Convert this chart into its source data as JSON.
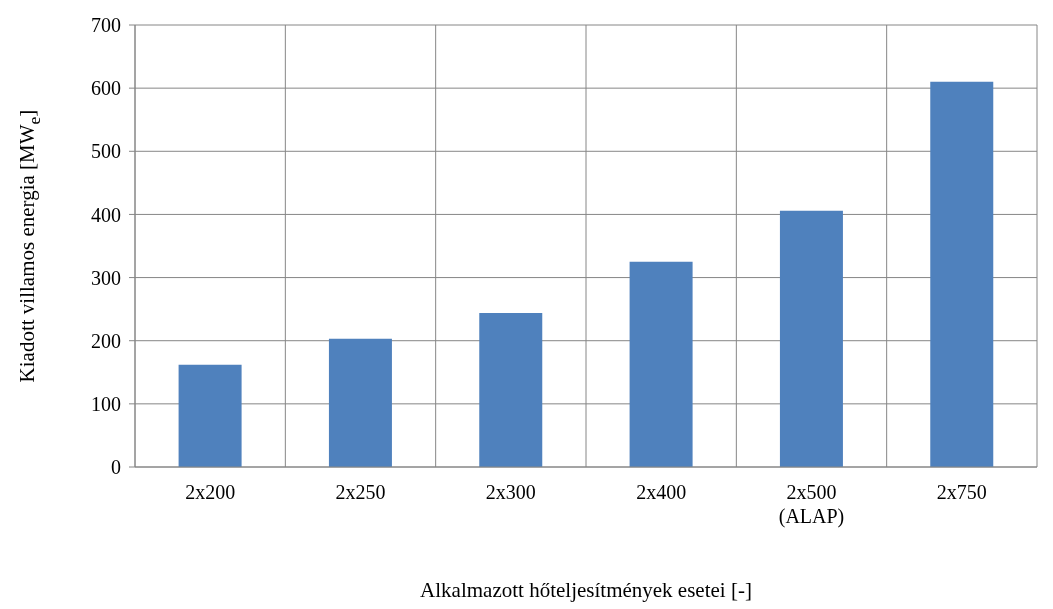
{
  "chart_data": {
    "type": "bar",
    "xlabel": "Alkalmazott hőteljesítmények esetei [-]",
    "ylabel": "Kiadott villamos energia [MW$_{e}$]",
    "categories": [
      "2x200",
      "2x250",
      "2x300",
      "2x400",
      "2x500\n(ALAP)",
      "2x750"
    ],
    "values": [
      162,
      203,
      244,
      325,
      406,
      610
    ],
    "color": "#4f81bd",
    "ylim": [
      0,
      700
    ],
    "yticks": [
      0,
      100,
      200,
      300,
      400,
      500,
      600,
      700
    ],
    "grid": true
  }
}
